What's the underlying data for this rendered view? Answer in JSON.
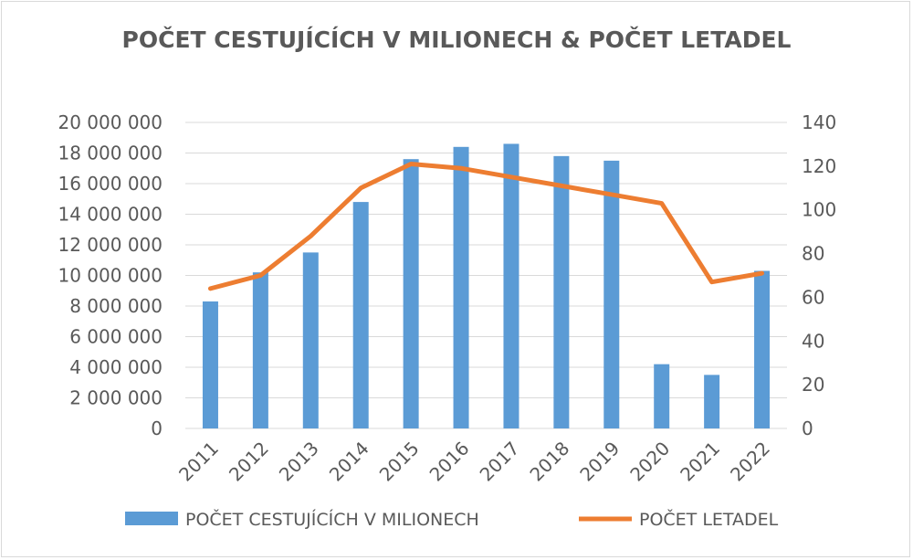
{
  "chart_data": {
    "type": "bar",
    "title": "POČET CESTUJÍCÍCH V MILIONECH & POČET LETADEL",
    "categories": [
      "2011",
      "2012",
      "2013",
      "2014",
      "2015",
      "2016",
      "2017",
      "2018",
      "2019",
      "2020",
      "2021",
      "2022"
    ],
    "series": [
      {
        "name": "POČET CESTUJÍCÍCH V MILIONECH",
        "type": "bar",
        "axis": "left",
        "color": "#5b9bd5",
        "values": [
          8300000,
          10200000,
          11500000,
          14800000,
          17600000,
          18400000,
          18600000,
          17800000,
          17500000,
          4200000,
          3500000,
          10300000
        ]
      },
      {
        "name": "POČET LETADEL",
        "type": "line",
        "axis": "right",
        "color": "#ed7d31",
        "values": [
          64,
          70,
          88,
          110,
          121,
          119,
          115,
          111,
          107,
          103,
          67,
          71
        ]
      }
    ],
    "y_left": {
      "min": 0,
      "max": 20000000,
      "tick_labels": [
        "0",
        "2 000 000",
        "4 000 000",
        "6 000 000",
        "8 000 000",
        "10 000 000",
        "12 000 000",
        "14 000 000",
        "16 000 000",
        "18 000 000",
        "20 000 000"
      ]
    },
    "y_right": {
      "min": 0,
      "max": 140,
      "tick_labels": [
        "0",
        "20",
        "40",
        "60",
        "80",
        "100",
        "120",
        "140"
      ]
    },
    "grid": true,
    "legend_position": "bottom"
  }
}
